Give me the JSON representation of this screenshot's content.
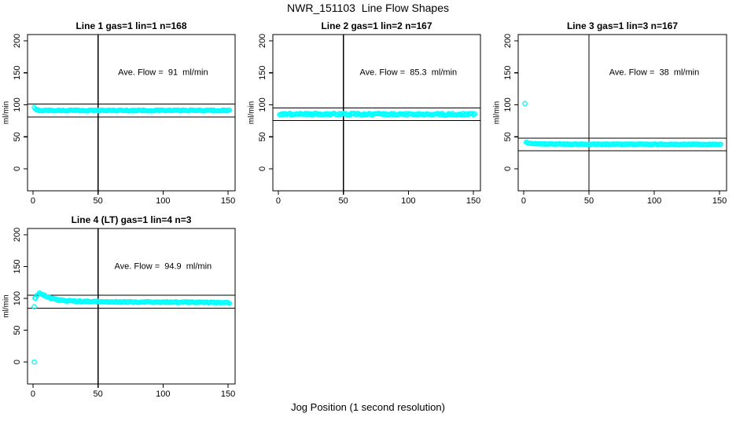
{
  "page": {
    "title": "NWR_151103  Line Flow Shapes",
    "xlabel": "Jog Position (1 second resolution)"
  },
  "chart_data": {
    "type": "scatter",
    "title": "NWR_151103  Line Flow Shapes",
    "xlabel": "Jog Position (1 second resolution)",
    "ylabel": "ml/min",
    "marker": "open-circle",
    "point_color": "#00ffff",
    "axis_color": "#000000",
    "background": "#ffffff",
    "x_ticks": [
      0,
      50,
      100,
      150
    ],
    "y_ticks": [
      0,
      50,
      100,
      150,
      200
    ],
    "xlim": [
      -4.2,
      155.4
    ],
    "ylim": [
      -34.4,
      209.8
    ],
    "grid": false,
    "legend": false,
    "layout": {
      "boxes": [
        [
          35,
          44,
          264,
          199
        ],
        [
          347,
          44,
          264,
          199
        ],
        [
          659,
          44,
          265,
          199
        ],
        [
          35,
          291,
          264,
          198
        ]
      ]
    },
    "plots": [
      {
        "title": "Line 1 gas=1 lin=1 n=168",
        "n": 168,
        "ave_flow": 91,
        "ave_flow_label": "Ave. Flow =  91  ml/min",
        "label_pos": [
          100,
          150
        ],
        "vline_x": 50,
        "hlines_y": [
          101,
          81
        ],
        "x_step": 1,
        "jitter": 0.8,
        "profile": [
          [
            1,
            95.3
          ],
          [
            2,
            92.6
          ],
          [
            3,
            91.8
          ],
          [
            6,
            91.2
          ],
          [
            151,
            91.2
          ]
        ],
        "extra_points": []
      },
      {
        "title": "Line 2 gas=1 lin=2 n=167",
        "n": 167,
        "ave_flow": 85.3,
        "ave_flow_label": "Ave. Flow =  85.3  ml/min",
        "label_pos": [
          100,
          150
        ],
        "vline_x": 50,
        "hlines_y": [
          95.3,
          75.3
        ],
        "x_step": 1,
        "jitter": 1.5,
        "profile": [
          [
            1,
            85.4
          ],
          [
            151,
            85.2
          ]
        ],
        "extra_points": []
      },
      {
        "title": "Line 3 gas=1 lin=3 n=167",
        "n": 167,
        "ave_flow": 38,
        "ave_flow_label": "Ave. Flow =  38  ml/min",
        "label_pos": [
          100,
          150
        ],
        "vline_x": 50,
        "hlines_y": [
          48,
          28
        ],
        "x_step": 1,
        "jitter": 0.5,
        "profile": [
          [
            2,
            41.8
          ],
          [
            4,
            40.4
          ],
          [
            7,
            39.4
          ],
          [
            12,
            38.9
          ],
          [
            25,
            38.6
          ],
          [
            151,
            38.2
          ]
        ],
        "extra_points": [
          [
            1,
            102
          ]
        ]
      },
      {
        "title": "Line 4 (LT) gas=1 lin=4 n=3",
        "n": 3,
        "ave_flow": 94.9,
        "ave_flow_label": "Ave. Flow =  94.9  ml/min",
        "label_pos": [
          100,
          150
        ],
        "vline_x": 50,
        "hlines_y": [
          104.9,
          84.9
        ],
        "x_step": 1,
        "jitter": 0.8,
        "profile": [
          [
            2,
            100.5
          ],
          [
            3,
            104.5
          ],
          [
            5,
            108
          ],
          [
            7,
            107
          ],
          [
            10,
            103.5
          ],
          [
            14,
            100
          ],
          [
            19,
            97.5
          ],
          [
            25,
            96.3
          ],
          [
            35,
            95.3
          ],
          [
            55,
            94.6
          ],
          [
            90,
            94.2
          ],
          [
            120,
            94
          ],
          [
            151,
            93.2
          ]
        ],
        "extra_points": [
          [
            1,
            0
          ],
          [
            1,
            87
          ],
          [
            1.5,
            100.5
          ]
        ]
      }
    ]
  }
}
